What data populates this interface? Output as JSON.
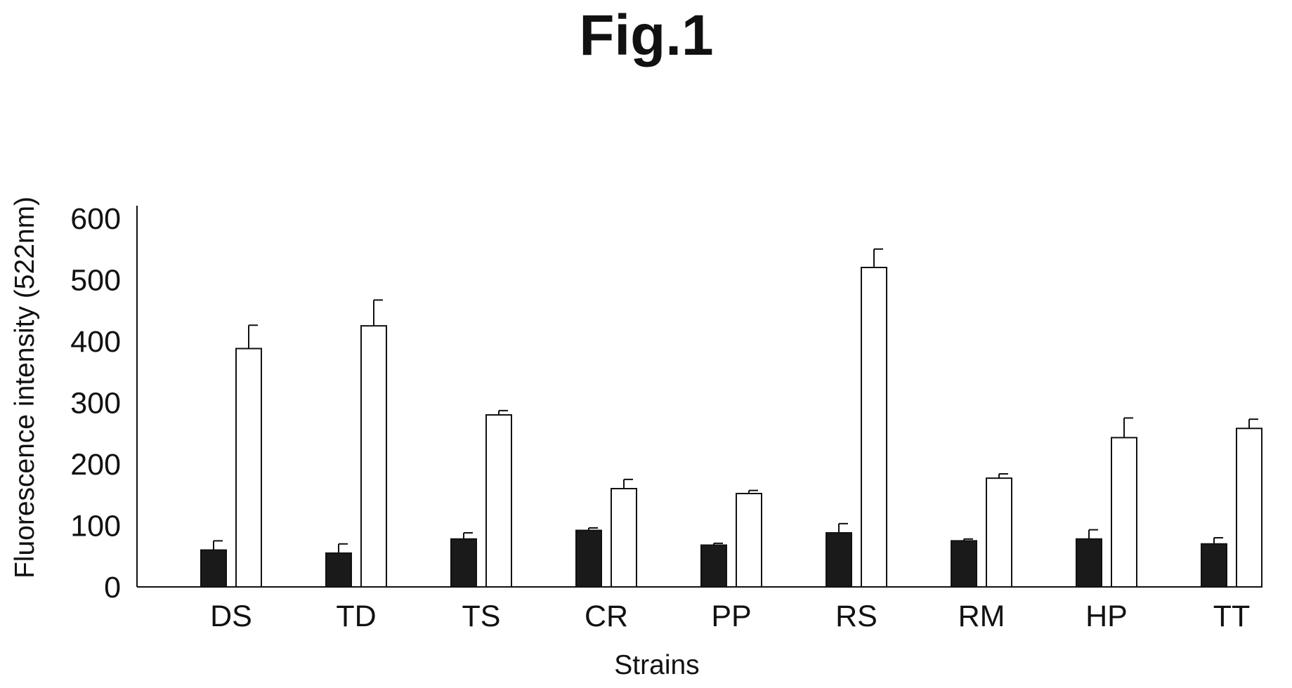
{
  "figure_label": "Fig.1",
  "chart_data": {
    "type": "bar",
    "title": "",
    "xlabel": "Strains",
    "ylabel": "Fluorescence intensity (522nm)",
    "ylim": [
      0,
      600
    ],
    "yticks": [
      0,
      100,
      200,
      300,
      400,
      500,
      600
    ],
    "grid": false,
    "legend": "none",
    "categories": [
      "DS",
      "TD",
      "TS",
      "CR",
      "PP",
      "RS",
      "RM",
      "HP",
      "TT"
    ],
    "series": [
      {
        "color": "#1a1a1a",
        "values": [
          60,
          55,
          78,
          92,
          68,
          88,
          75,
          78,
          70
        ],
        "errors": [
          15,
          15,
          10,
          4,
          3,
          15,
          3,
          15,
          10
        ]
      },
      {
        "color": "#ffffff",
        "values": [
          388,
          425,
          280,
          160,
          152,
          520,
          177,
          243,
          258
        ],
        "errors": [
          38,
          42,
          7,
          15,
          5,
          30,
          7,
          32,
          15
        ]
      }
    ]
  }
}
